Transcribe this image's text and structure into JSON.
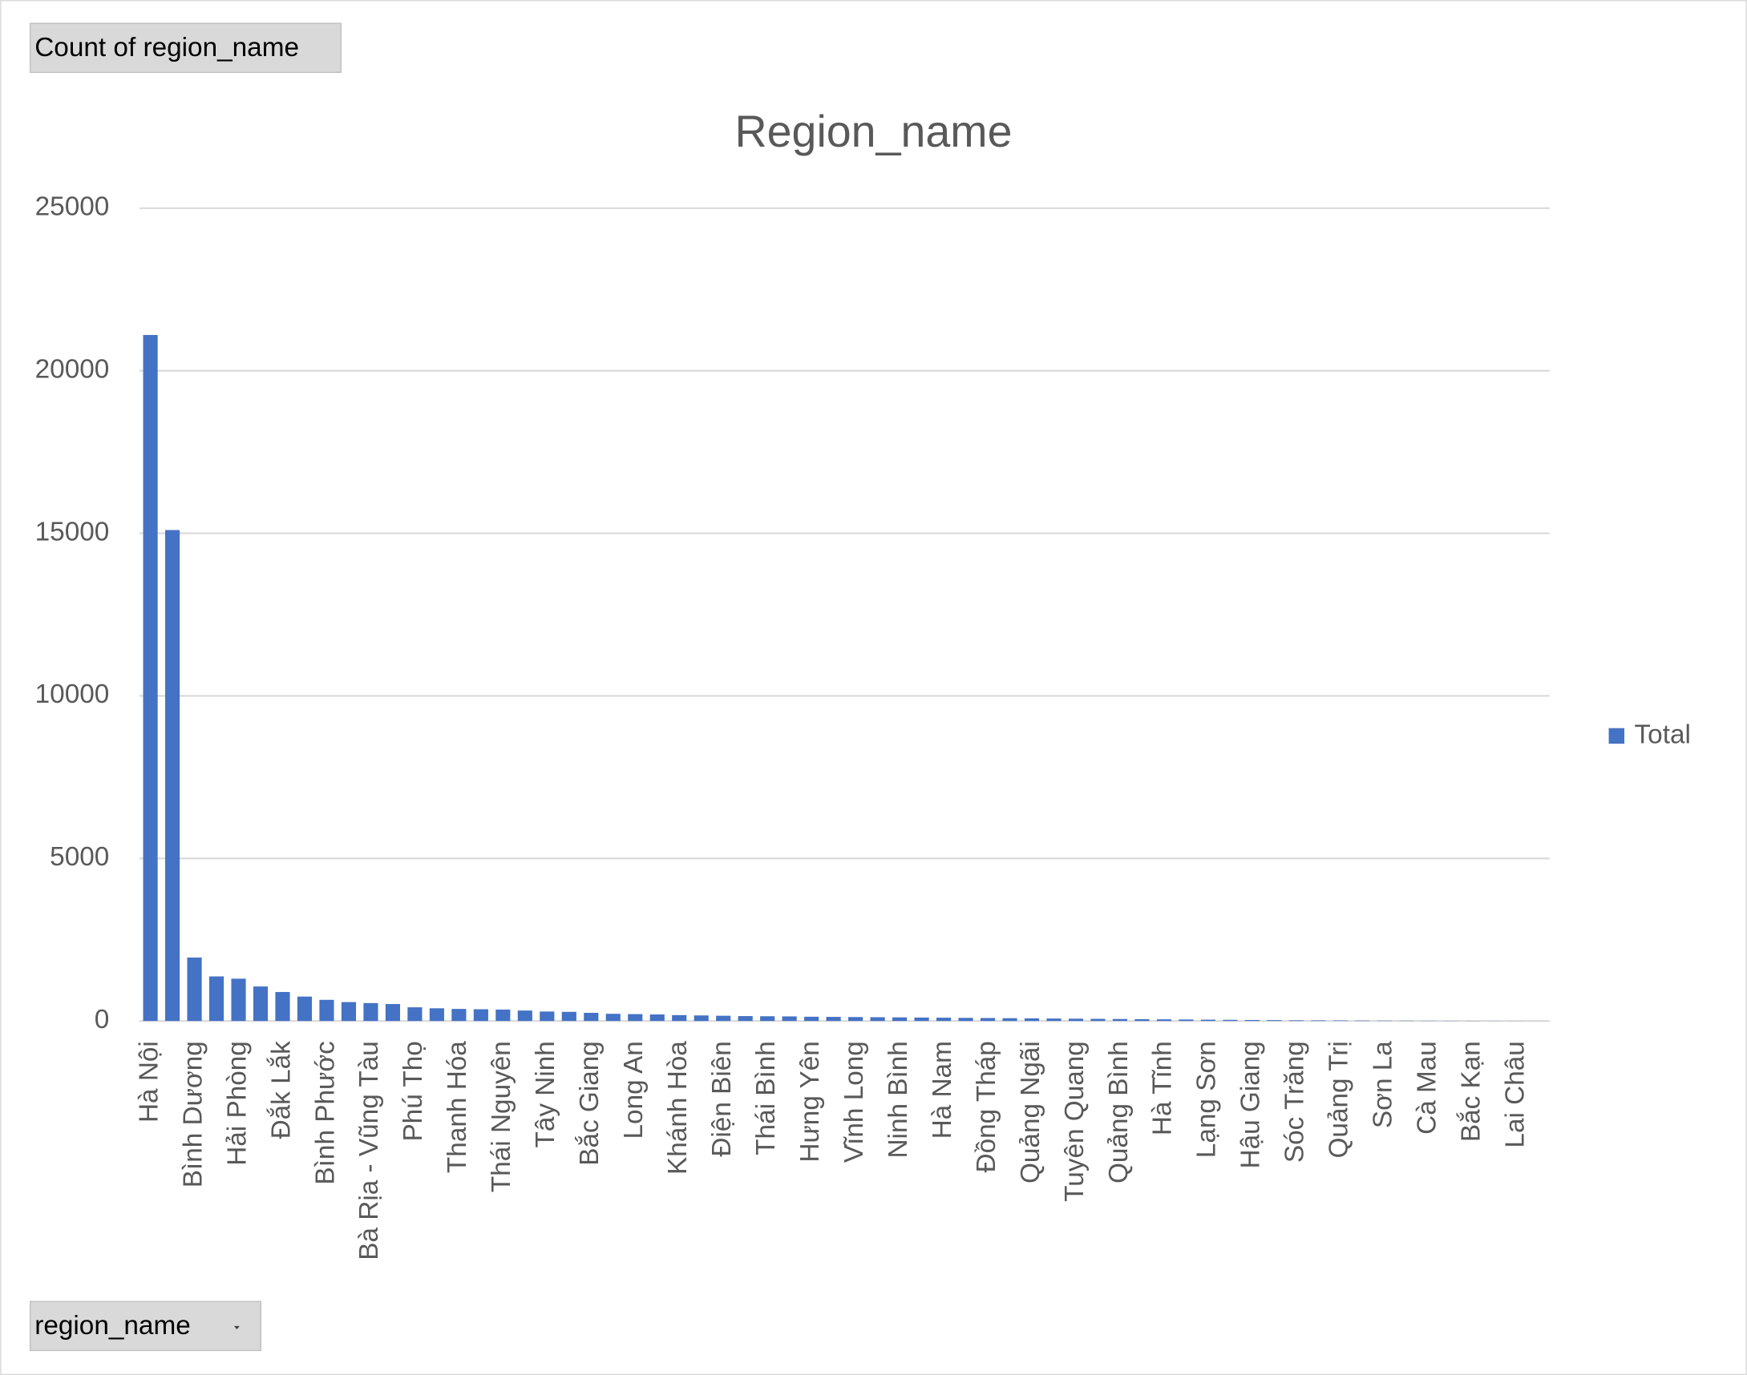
{
  "pivot": {
    "value_field": "Count of region_name",
    "axis_field": "region_name"
  },
  "chart_data": {
    "type": "bar",
    "title": "Region_name",
    "categories": [
      "Hà Nội",
      null,
      "Bình Dương",
      null,
      "Hải Phòng",
      null,
      "Đắk Lắk",
      null,
      "Bình Phước",
      null,
      "Bà Rịa - Vũng Tàu",
      null,
      "Phú Thọ",
      null,
      "Thanh Hóa",
      null,
      "Thái Nguyên",
      null,
      "Tây Ninh",
      null,
      "Bắc Giang",
      null,
      "Long An",
      null,
      "Khánh Hòa",
      null,
      "Điện Biên",
      null,
      "Thái Bình",
      null,
      "Hưng Yên",
      null,
      "Vĩnh Long",
      null,
      "Ninh Bình",
      null,
      "Hà Nam",
      null,
      "Đồng Tháp",
      null,
      "Quảng Ngãi",
      null,
      "Tuyên Quang",
      null,
      "Quảng Bình",
      null,
      "Hà Tĩnh",
      null,
      "Lạng Sơn",
      null,
      "Hậu Giang",
      null,
      "Sóc Trăng",
      null,
      "Quảng Trị",
      null,
      "Sơn La",
      null,
      "Cà Mau",
      null,
      "Bắc Kạn",
      null,
      "Lai Châu",
      null
    ],
    "series": [
      {
        "name": "Total",
        "color": "#4472c4",
        "values": [
          21100,
          15100,
          1950,
          1370,
          1300,
          1060,
          890,
          750,
          650,
          580,
          550,
          520,
          420,
          390,
          370,
          360,
          350,
          320,
          290,
          280,
          250,
          220,
          210,
          200,
          180,
          170,
          160,
          150,
          145,
          140,
          130,
          125,
          120,
          115,
          110,
          105,
          100,
          95,
          90,
          85,
          80,
          75,
          70,
          65,
          60,
          55,
          50,
          45,
          40,
          35,
          30,
          25,
          20,
          18,
          15,
          12,
          10,
          8,
          6,
          5,
          4,
          3,
          2,
          1
        ]
      }
    ],
    "ylim": [
      0,
      25000
    ],
    "yticks": [
      0,
      5000,
      10000,
      15000,
      20000,
      25000
    ],
    "grid": true,
    "legend": "right"
  }
}
